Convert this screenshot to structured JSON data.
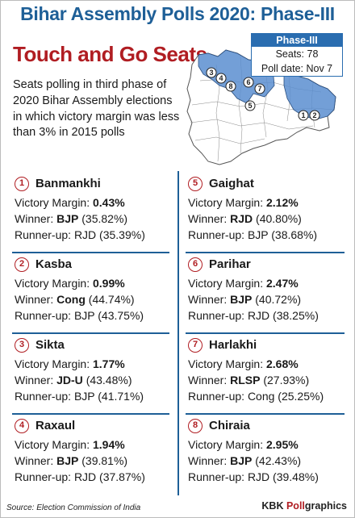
{
  "title": "Bihar Assembly Polls 2020: Phase-III",
  "subtitle": "Touch and Go Seats",
  "intro": "Seats polling in third phase of 2020 Bihar Assembly elections in which victory margin was less than 3% in 2015 polls",
  "phase_box": {
    "heading": "Phase-III",
    "seats": "Seats: 78",
    "poll_date": "Poll date: Nov 7"
  },
  "map_markers": [
    "1",
    "2",
    "3",
    "4",
    "5",
    "6",
    "7",
    "8"
  ],
  "labels": {
    "victory_margin": "Victory Margin: ",
    "winner": "Winner: ",
    "runner_up": "Runner-up: "
  },
  "seats": [
    {
      "num": "1",
      "name": "Banmankhi",
      "margin": "0.43%",
      "winner_party": "BJP",
      "winner_pct": "(35.82%)",
      "runner_up": "RJD (35.39%)"
    },
    {
      "num": "2",
      "name": "Kasba",
      "margin": "0.99%",
      "winner_party": "Cong",
      "winner_pct": "(44.74%)",
      "runner_up": "BJP (43.75%)"
    },
    {
      "num": "3",
      "name": "Sikta",
      "margin": "1.77%",
      "winner_party": "JD-U",
      "winner_pct": "(43.48%)",
      "runner_up": "BJP (41.71%)"
    },
    {
      "num": "4",
      "name": "Raxaul",
      "margin": "1.94%",
      "winner_party": "BJP",
      "winner_pct": "(39.81%)",
      "runner_up": "RJD (37.87%)"
    },
    {
      "num": "5",
      "name": "Gaighat",
      "margin": "2.12%",
      "winner_party": "RJD",
      "winner_pct": "(40.80%)",
      "runner_up": "BJP (38.68%)"
    },
    {
      "num": "6",
      "name": "Parihar",
      "margin": "2.47%",
      "winner_party": "BJP",
      "winner_pct": "(40.72%)",
      "runner_up": "RJD (38.25%)"
    },
    {
      "num": "7",
      "name": "Harlakhi",
      "margin": "2.68%",
      "winner_party": "RLSP",
      "winner_pct": "(27.93%)",
      "runner_up": "Cong (25.25%)"
    },
    {
      "num": "8",
      "name": "Chiraia",
      "margin": "2.95%",
      "winner_party": "BJP",
      "winner_pct": "(42.43%)",
      "runner_up": "RJD (39.48%)"
    }
  ],
  "source": "Source: Election Commission of India",
  "brand_a": "KBK ",
  "brand_b": "Poll",
  "brand_c": "graphics",
  "colors": {
    "title_blue": "#1e5f97",
    "accent_red": "#b01d22",
    "map_highlight": "#5b8ed0",
    "map_base": "#ffffff"
  }
}
